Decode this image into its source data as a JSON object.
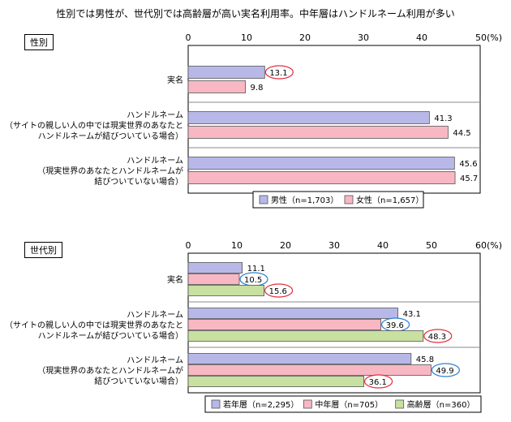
{
  "title": "性別では男性が、世代別では高齢層が高い実名利用率。中年層はハンドルネーム利用が多い",
  "chart_data": [
    {
      "type": "bar",
      "panel_label": "性別",
      "orientation": "horizontal",
      "xlim": [
        0,
        50
      ],
      "ticks": [
        0,
        10,
        20,
        30,
        40,
        50
      ],
      "unit": "(%)",
      "categories": [
        [
          "実名"
        ],
        [
          "ハンドルネーム",
          "（サイトの親しい人の中では現実世界のあなたと",
          "ハンドルネームが結びついている場合）"
        ],
        [
          "ハンドルネーム",
          "（現実世界のあなたとハンドルネームが",
          "結びついていない場合）"
        ]
      ],
      "series": [
        {
          "name": "男性（n=1,703）",
          "values": [
            13.1,
            41.3,
            45.6
          ],
          "color": "#b8b8e8"
        },
        {
          "name": "女性（n=1,657）",
          "values": [
            9.8,
            44.5,
            45.7
          ],
          "color": "#f7b8c4"
        }
      ],
      "highlights": [
        {
          "series": 0,
          "index": 0,
          "color": "#e03040"
        }
      ]
    },
    {
      "type": "bar",
      "panel_label": "世代別",
      "orientation": "horizontal",
      "xlim": [
        0,
        60
      ],
      "ticks": [
        0,
        10,
        20,
        30,
        40,
        50,
        60
      ],
      "unit": "(%)",
      "categories": [
        [
          "実名"
        ],
        [
          "ハンドルネーム",
          "（サイトの親しい人の中では現実世界のあなたと",
          "ハンドルネームが結びついている場合）"
        ],
        [
          "ハンドルネーム",
          "（現実世界のあなたとハンドルネームが",
          "結びついていない場合）"
        ]
      ],
      "series": [
        {
          "name": "若年層（n=2,295）",
          "values": [
            11.1,
            43.1,
            45.8
          ],
          "color": "#b8b8e8"
        },
        {
          "name": "中年層（n=705）",
          "values": [
            10.5,
            39.6,
            49.9
          ],
          "color": "#f7b8c4"
        },
        {
          "name": "高齢層（n=360）",
          "values": [
            15.6,
            48.3,
            36.1
          ],
          "color": "#c8e0a0"
        }
      ],
      "highlights": [
        {
          "series": 1,
          "index": 0,
          "color": "#2f7fd0"
        },
        {
          "series": 2,
          "index": 0,
          "color": "#e03040"
        },
        {
          "series": 1,
          "index": 1,
          "color": "#2f7fd0"
        },
        {
          "series": 2,
          "index": 1,
          "color": "#e03040"
        },
        {
          "series": 1,
          "index": 2,
          "color": "#2f7fd0"
        },
        {
          "series": 2,
          "index": 2,
          "color": "#e03040"
        }
      ]
    }
  ]
}
